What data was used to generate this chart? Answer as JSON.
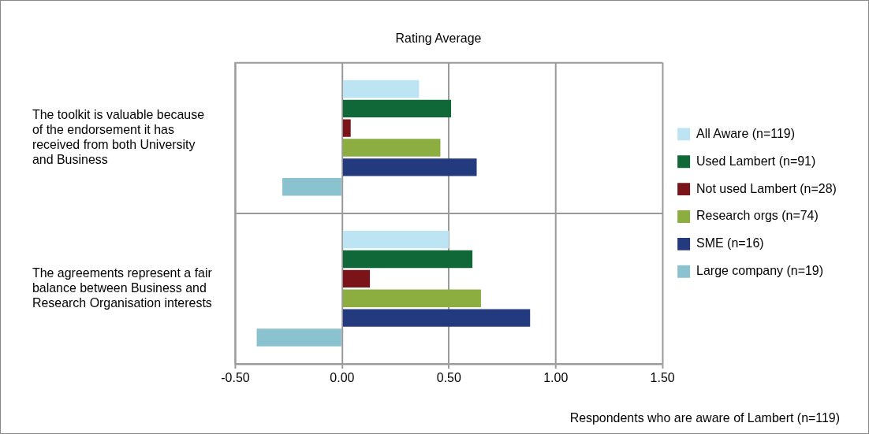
{
  "chart_data": {
    "type": "bar",
    "orientation": "horizontal",
    "title": "Rating Average",
    "categories": [
      "The toolkit is valuable because of the endorsement it has received from both University and Business",
      "The agreements represent a fair balance between Business and Research Organisation interests"
    ],
    "series": [
      {
        "name": "All Aware (n=119)",
        "color": "#bde4f2",
        "values": [
          0.36,
          0.5
        ]
      },
      {
        "name": "Used Lambert (n=91)",
        "color": "#106838",
        "values": [
          0.51,
          0.61
        ]
      },
      {
        "name": "Not used Lambert (n=28)",
        "color": "#7b1418",
        "values": [
          0.04,
          0.13
        ]
      },
      {
        "name": "Research orgs (n=74)",
        "color": "#8cad40",
        "values": [
          0.46,
          0.65
        ]
      },
      {
        "name": "SME (n=16)",
        "color": "#233a7e",
        "values": [
          0.63,
          0.88
        ]
      },
      {
        "name": "Large company (n=19)",
        "color": "#8bc2d0",
        "values": [
          -0.28,
          -0.4
        ]
      }
    ],
    "xlim": [
      -0.5,
      1.5
    ],
    "xticks": [
      {
        "value": -0.5,
        "label": "-0.50"
      },
      {
        "value": 0,
        "label": "0.00"
      },
      {
        "value": 0.5,
        "label": "0.50"
      },
      {
        "value": 1,
        "label": "1.00"
      },
      {
        "value": 1.5,
        "label": "1.50"
      }
    ],
    "grid": true,
    "legend": "right",
    "annotations": [
      "Respondents who are aware of Lambert (n=119)"
    ]
  }
}
